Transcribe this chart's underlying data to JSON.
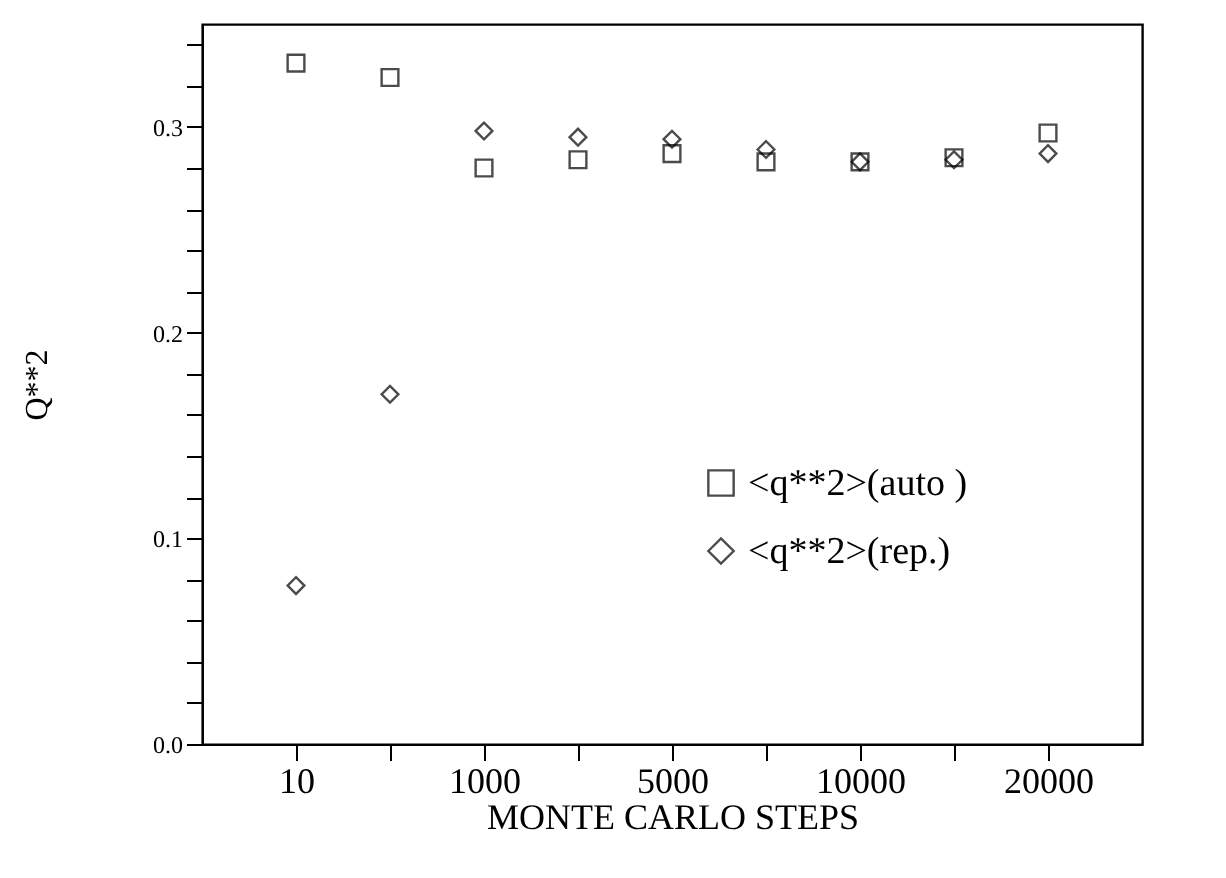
{
  "chart_data": {
    "type": "scatter",
    "xlabel": "MONTE CARLO STEPS",
    "ylabel": "Q**2",
    "categories": [
      "10",
      null,
      "1000",
      null,
      "5000",
      null,
      "10000",
      null,
      "20000"
    ],
    "series": [
      {
        "name": "<q**2>(auto )",
        "color": "#000000",
        "marker": "square",
        "values": [
          0.331,
          0.324,
          0.28,
          0.284,
          0.287,
          0.283,
          0.283,
          0.285,
          0.297
        ]
      },
      {
        "name": "<q**2>(rep.)",
        "color": "#000000",
        "marker": "diamond",
        "values": [
          0.077,
          0.17,
          0.298,
          0.295,
          0.294,
          0.289,
          0.283,
          0.284,
          0.287
        ]
      }
    ],
    "ylim": [
      0,
      0.35
    ],
    "yticks": [
      {
        "value": 0,
        "label": "0.0"
      },
      {
        "value": 0.02,
        "label": null
      },
      {
        "value": 0.04,
        "label": null
      },
      {
        "value": 0.06,
        "label": null
      },
      {
        "value": 0.08,
        "label": null
      },
      {
        "value": 0.1,
        "label": "0.1"
      },
      {
        "value": 0.12,
        "label": null
      },
      {
        "value": 0.14,
        "label": null
      },
      {
        "value": 0.16,
        "label": null
      },
      {
        "value": 0.18,
        "label": null
      },
      {
        "value": 0.2,
        "label": "0.2"
      },
      {
        "value": 0.22,
        "label": null
      },
      {
        "value": 0.24,
        "label": null
      },
      {
        "value": 0.26,
        "label": null
      },
      {
        "value": 0.28,
        "label": null
      },
      {
        "value": 0.3,
        "label": "0.3"
      },
      {
        "value": 0.32,
        "label": null
      },
      {
        "value": 0.34,
        "label": null
      }
    ],
    "grid": false,
    "legend": "right"
  }
}
